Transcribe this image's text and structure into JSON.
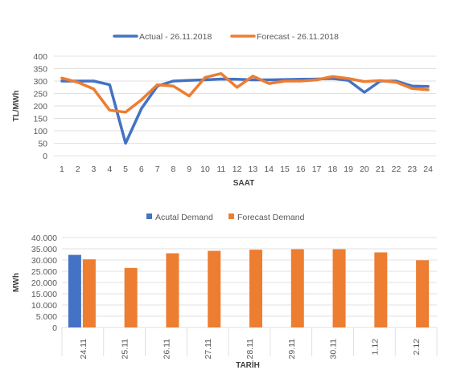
{
  "chart_data": [
    {
      "type": "line",
      "title": "",
      "xlabel": "SAAT",
      "ylabel": "TL/MWh",
      "ylim": [
        0,
        400
      ],
      "yticks": [
        0,
        50,
        100,
        150,
        200,
        250,
        300,
        350,
        400
      ],
      "x": [
        1,
        2,
        3,
        4,
        5,
        6,
        7,
        8,
        9,
        10,
        11,
        12,
        13,
        14,
        15,
        16,
        17,
        18,
        19,
        20,
        21,
        22,
        23,
        24
      ],
      "grid": true,
      "legend": "top",
      "series": [
        {
          "name": "Actual - 26.11.2018",
          "color": "#4472C4",
          "values": [
            300,
            300,
            300,
            285,
            50,
            190,
            280,
            300,
            303,
            305,
            308,
            307,
            305,
            305,
            306,
            307,
            308,
            310,
            303,
            255,
            300,
            300,
            280,
            278
          ]
        },
        {
          "name": "Forecast - 26.11.2018",
          "color": "#ED7D31",
          "values": [
            312,
            295,
            268,
            183,
            175,
            225,
            285,
            280,
            240,
            315,
            330,
            275,
            320,
            290,
            300,
            300,
            305,
            318,
            310,
            298,
            302,
            295,
            270,
            265
          ]
        }
      ]
    },
    {
      "type": "bar",
      "title": "",
      "xlabel": "TARİH",
      "ylabel": "MWh",
      "ylim": [
        0,
        40000
      ],
      "yticks": [
        "0",
        "5.000",
        "10.000",
        "15.000",
        "20.000",
        "25.000",
        "30.000",
        "35.000",
        "40.000"
      ],
      "categories": [
        "24.11",
        "25.11",
        "26.11",
        "27.11",
        "28.11",
        "29.11",
        "30.11",
        "1.12",
        "2.12"
      ],
      "grid": true,
      "legend": "top",
      "series": [
        {
          "name": "Acutal Demand",
          "color": "#4472C4",
          "values": [
            32300,
            null,
            null,
            null,
            null,
            null,
            null,
            null,
            null
          ]
        },
        {
          "name": "Forecast Demand",
          "color": "#ED7D31",
          "values": [
            30300,
            26500,
            33000,
            34100,
            34600,
            34800,
            34800,
            33400,
            29900
          ]
        }
      ]
    }
  ]
}
